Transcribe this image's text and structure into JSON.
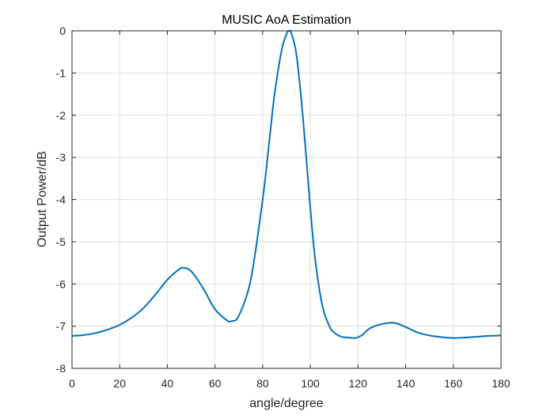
{
  "chart_data": {
    "type": "line",
    "title": "MUSIC AoA Estimation",
    "xlabel": "angle/degree",
    "ylabel": "Output Power/dB",
    "xlim": [
      0,
      180
    ],
    "ylim": [
      -8,
      0
    ],
    "xticks": [
      0,
      20,
      40,
      60,
      80,
      100,
      120,
      140,
      160,
      180
    ],
    "yticks": [
      0,
      -1,
      -2,
      -3,
      -4,
      -5,
      -6,
      -7,
      -8
    ],
    "grid": true,
    "line_color": "#0072BD",
    "series": [
      {
        "x": [
          0,
          5,
          10,
          15,
          20,
          25,
          30,
          35,
          40,
          45,
          47,
          50,
          55,
          60,
          65,
          67,
          70,
          75,
          80,
          83,
          85,
          88,
          90,
          91,
          92,
          94,
          96,
          98,
          100,
          102,
          105,
          108,
          110,
          113,
          116,
          119,
          122,
          125,
          130,
          135,
          140,
          145,
          150,
          155,
          160,
          165,
          170,
          175,
          180
        ],
        "values": [
          -7.23,
          -7.21,
          -7.16,
          -7.08,
          -6.97,
          -6.8,
          -6.57,
          -6.25,
          -5.9,
          -5.65,
          -5.62,
          -5.7,
          -6.1,
          -6.6,
          -6.86,
          -6.88,
          -6.75,
          -5.9,
          -4.0,
          -2.5,
          -1.5,
          -0.45,
          -0.08,
          0.0,
          -0.05,
          -0.5,
          -1.5,
          -2.8,
          -4.2,
          -5.4,
          -6.5,
          -7.0,
          -7.15,
          -7.25,
          -7.27,
          -7.28,
          -7.2,
          -7.05,
          -6.95,
          -6.92,
          -7.02,
          -7.15,
          -7.22,
          -7.26,
          -7.28,
          -7.27,
          -7.25,
          -7.23,
          -7.22
        ]
      }
    ]
  }
}
